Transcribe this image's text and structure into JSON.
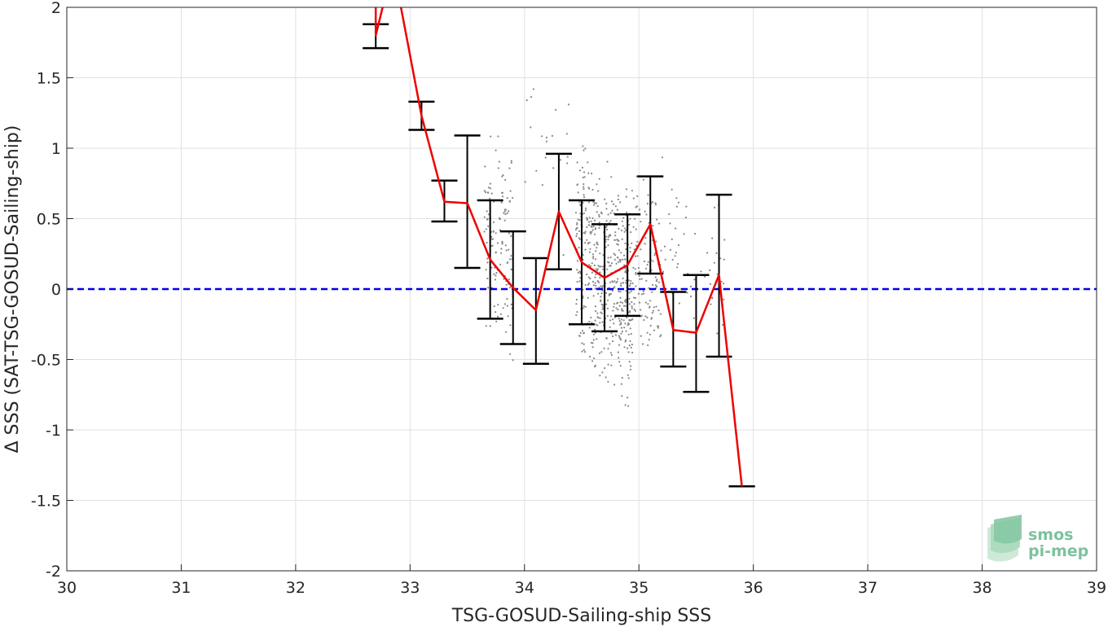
{
  "chart_data": {
    "type": "scatter",
    "xlabel": "TSG-GOSUD-Sailing-ship SSS",
    "ylabel": "Δ SSS (SAT-TSG-GOSUD-Sailing-ship)",
    "xlim": [
      30,
      39
    ],
    "ylim": [
      -2,
      2
    ],
    "x_ticks": [
      "30",
      "31",
      "32",
      "33",
      "34",
      "35",
      "36",
      "37",
      "38",
      "39"
    ],
    "y_ticks": [
      "2",
      "1.5",
      "1",
      "0.5",
      "0",
      "-0.5",
      "-1",
      "-1.5",
      "-2"
    ],
    "grid": true,
    "reference_line": {
      "y": 0,
      "style": "dashed",
      "color": "#0000ee"
    },
    "series": [
      {
        "type": "line",
        "color": "#ee0000",
        "x": [
          32.7,
          32.7,
          32.85,
          33.1,
          33.3,
          33.5,
          33.7,
          33.9,
          34.1,
          34.3,
          34.5,
          34.7,
          34.9,
          35.1,
          35.3,
          35.5,
          35.7,
          35.9
        ],
        "y": [
          2.3,
          1.8,
          2.3,
          1.23,
          0.62,
          0.61,
          0.21,
          0.01,
          -0.15,
          0.55,
          0.19,
          0.08,
          0.17,
          0.46,
          -0.29,
          -0.31,
          0.1,
          -1.4
        ]
      },
      {
        "type": "errorbar",
        "color": "#000000",
        "x": [
          32.7,
          33.1,
          33.3,
          33.5,
          33.7,
          33.9,
          34.1,
          34.3,
          34.5,
          34.7,
          34.9,
          35.1,
          35.3,
          35.5,
          35.7,
          35.9
        ],
        "low": [
          1.71,
          1.13,
          0.48,
          0.15,
          -0.21,
          -0.39,
          -0.53,
          0.14,
          -0.25,
          -0.3,
          -0.19,
          0.11,
          -0.55,
          -0.73,
          -0.48,
          -1.4
        ],
        "high": [
          1.88,
          1.33,
          0.77,
          1.09,
          0.63,
          0.41,
          0.22,
          0.96,
          0.63,
          0.46,
          0.53,
          0.8,
          -0.02,
          0.1,
          0.67,
          -1.4
        ]
      },
      {
        "type": "scatter",
        "color": "#888888",
        "clusters": [
          {
            "x": [
              33.65,
              33.9
            ],
            "y": [
              -0.5,
              1.1
            ],
            "n": 130
          },
          {
            "x": [
              34.45,
              34.95
            ],
            "y": [
              -0.75,
              0.98
            ],
            "n": 520
          },
          {
            "x": [
              34.95,
              35.2
            ],
            "y": [
              -0.55,
              0.9
            ],
            "n": 120
          },
          {
            "x": [
              35.2,
              35.75
            ],
            "y": [
              -0.4,
              0.85
            ],
            "n": 60
          },
          {
            "x": [
              34.0,
              34.4
            ],
            "y": [
              0.2,
              1.5
            ],
            "n": 20
          }
        ]
      }
    ]
  },
  "logo": {
    "line1": "smos",
    "line2": "pi-mep"
  }
}
